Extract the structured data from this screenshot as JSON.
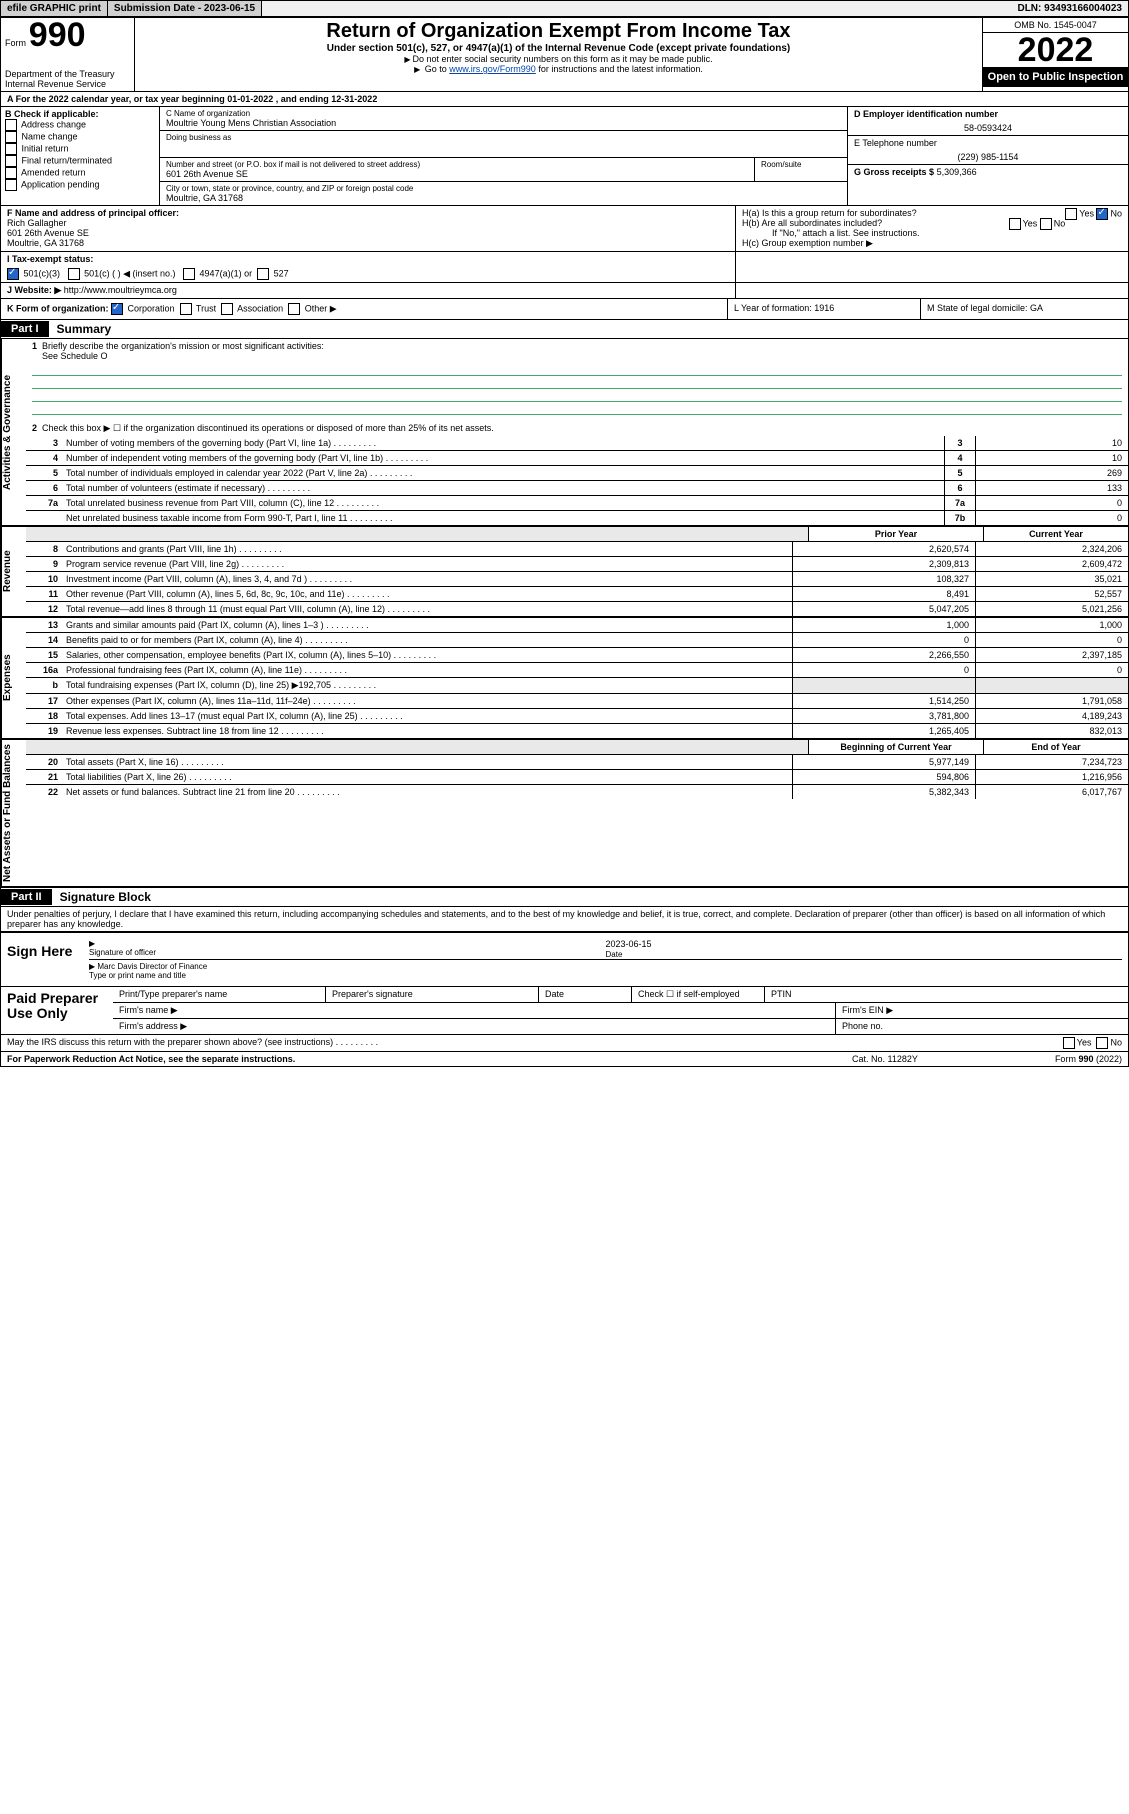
{
  "topbar": {
    "efile": "efile GRAPHIC print",
    "submission": "Submission Date - 2023-06-15",
    "dln": "DLN: 93493166004023"
  },
  "header": {
    "form_prefix": "Form",
    "form_number": "990",
    "dept": "Department of the Treasury",
    "irs": "Internal Revenue Service",
    "title": "Return of Organization Exempt From Income Tax",
    "subtitle": "Under section 501(c), 527, or 4947(a)(1) of the Internal Revenue Code (except private foundations)",
    "instr1": "Do not enter social security numbers on this form as it may be made public.",
    "instr2_pre": "Go to ",
    "instr2_link": "www.irs.gov/Form990",
    "instr2_post": " for instructions and the latest information.",
    "omb": "OMB No. 1545-0047",
    "year": "2022",
    "open": "Open to Public Inspection"
  },
  "rowA": "A For the 2022 calendar year, or tax year beginning 01-01-2022   , and ending 12-31-2022",
  "colB": {
    "label": "B Check if applicable:",
    "items": [
      "Address change",
      "Name change",
      "Initial return",
      "Final return/terminated",
      "Amended return",
      "Application pending"
    ]
  },
  "colC": {
    "name_label": "C Name of organization",
    "name": "Moultrie Young Mens Christian Association",
    "dba_label": "Doing business as",
    "addr_label": "Number and street (or P.O. box if mail is not delivered to street address)",
    "room_label": "Room/suite",
    "addr": "601 26th Avenue SE",
    "city_label": "City or town, state or province, country, and ZIP or foreign postal code",
    "city": "Moultrie, GA  31768"
  },
  "colD": {
    "ein_label": "D Employer identification number",
    "ein": "58-0593424",
    "phone_label": "E Telephone number",
    "phone": "(229) 985-1154",
    "gross_label": "G Gross receipts $",
    "gross": "5,309,366"
  },
  "rowF": {
    "label": "F  Name and address of principal officer:",
    "name": "Rich Gallagher",
    "addr1": "601 26th Avenue SE",
    "addr2": "Moultrie, GA  31768"
  },
  "rowH": {
    "ha": "H(a)  Is this a group return for subordinates?",
    "hb": "H(b)  Are all subordinates included?",
    "hb_note": "If \"No,\" attach a list. See instructions.",
    "hc": "H(c)  Group exemption number ▶",
    "yes": "Yes",
    "no": "No"
  },
  "rowI": {
    "label": "I   Tax-exempt status:",
    "opts": [
      "501(c)(3)",
      "501(c) (   ) ◀ (insert no.)",
      "4947(a)(1) or",
      "527"
    ]
  },
  "rowJ": {
    "label": "J   Website: ▶",
    "url": "http://www.moultrieymca.org"
  },
  "rowK": {
    "label": "K Form of organization:",
    "opts": [
      "Corporation",
      "Trust",
      "Association",
      "Other ▶"
    ],
    "L": "L Year of formation: 1916",
    "M": "M State of legal domicile: GA"
  },
  "parts": {
    "p1": "Part I",
    "p1_title": "Summary",
    "p2": "Part II",
    "p2_title": "Signature Block"
  },
  "summary": {
    "line1": "Briefly describe the organization's mission or most significant activities:",
    "line1_val": "See Schedule O",
    "line2": "Check this box ▶ ☐  if the organization discontinued its operations or disposed of more than 25% of its net assets.",
    "prior_label": "Prior Year",
    "current_label": "Current Year",
    "begin_label": "Beginning of Current Year",
    "end_label": "End of Year",
    "fundraising_expenses": "192,705",
    "rows_top": [
      {
        "n": "3",
        "d": "Number of voting members of the governing body (Part VI, line 1a)",
        "bn": "3",
        "v": "10"
      },
      {
        "n": "4",
        "d": "Number of independent voting members of the governing body (Part VI, line 1b)",
        "bn": "4",
        "v": "10"
      },
      {
        "n": "5",
        "d": "Total number of individuals employed in calendar year 2022 (Part V, line 2a)",
        "bn": "5",
        "v": "269"
      },
      {
        "n": "6",
        "d": "Total number of volunteers (estimate if necessary)",
        "bn": "6",
        "v": "133"
      },
      {
        "n": "7a",
        "d": "Total unrelated business revenue from Part VIII, column (C), line 12",
        "bn": "7a",
        "v": "0"
      },
      {
        "n": "",
        "d": "Net unrelated business taxable income from Form 990-T, Part I, line 11",
        "bn": "7b",
        "v": "0"
      }
    ],
    "rows_rev": [
      {
        "n": "8",
        "d": "Contributions and grants (Part VIII, line 1h)",
        "p": "2,620,574",
        "c": "2,324,206"
      },
      {
        "n": "9",
        "d": "Program service revenue (Part VIII, line 2g)",
        "p": "2,309,813",
        "c": "2,609,472"
      },
      {
        "n": "10",
        "d": "Investment income (Part VIII, column (A), lines 3, 4, and 7d )",
        "p": "108,327",
        "c": "35,021"
      },
      {
        "n": "11",
        "d": "Other revenue (Part VIII, column (A), lines 5, 6d, 8c, 9c, 10c, and 11e)",
        "p": "8,491",
        "c": "52,557"
      },
      {
        "n": "12",
        "d": "Total revenue—add lines 8 through 11 (must equal Part VIII, column (A), line 12)",
        "p": "5,047,205",
        "c": "5,021,256"
      }
    ],
    "rows_exp": [
      {
        "n": "13",
        "d": "Grants and similar amounts paid (Part IX, column (A), lines 1–3 )",
        "p": "1,000",
        "c": "1,000"
      },
      {
        "n": "14",
        "d": "Benefits paid to or for members (Part IX, column (A), line 4)",
        "p": "0",
        "c": "0"
      },
      {
        "n": "15",
        "d": "Salaries, other compensation, employee benefits (Part IX, column (A), lines 5–10)",
        "p": "2,266,550",
        "c": "2,397,185"
      },
      {
        "n": "16a",
        "d": "Professional fundraising fees (Part IX, column (A), line 11e)",
        "p": "0",
        "c": "0"
      },
      {
        "n": "b",
        "d": "Total fundraising expenses (Part IX, column (D), line 25) ▶192,705",
        "p": "",
        "c": "",
        "grey": true
      },
      {
        "n": "17",
        "d": "Other expenses (Part IX, column (A), lines 11a–11d, 11f–24e)",
        "p": "1,514,250",
        "c": "1,791,058"
      },
      {
        "n": "18",
        "d": "Total expenses. Add lines 13–17 (must equal Part IX, column (A), line 25)",
        "p": "3,781,800",
        "c": "4,189,243"
      },
      {
        "n": "19",
        "d": "Revenue less expenses. Subtract line 18 from line 12",
        "p": "1,265,405",
        "c": "832,013"
      }
    ],
    "rows_net": [
      {
        "n": "20",
        "d": "Total assets (Part X, line 16)",
        "p": "5,977,149",
        "c": "7,234,723"
      },
      {
        "n": "21",
        "d": "Total liabilities (Part X, line 26)",
        "p": "594,806",
        "c": "1,216,956"
      },
      {
        "n": "22",
        "d": "Net assets or fund balances. Subtract line 21 from line 20",
        "p": "5,382,343",
        "c": "6,017,767"
      }
    ]
  },
  "vlabels": {
    "ag": "Activities & Governance",
    "rev": "Revenue",
    "exp": "Expenses",
    "net": "Net Assets or Fund Balances"
  },
  "signature": {
    "intro": "Under penalties of perjury, I declare that I have examined this return, including accompanying schedules and statements, and to the best of my knowledge and belief, it is true, correct, and complete. Declaration of preparer (other than officer) is based on all information of which preparer has any knowledge.",
    "sign_here": "Sign Here",
    "sig_officer": "Signature of officer",
    "date": "Date",
    "date_val": "2023-06-15",
    "name_title": "Marc Davis  Director of Finance",
    "name_label": "Type or print name and title",
    "paid": "Paid Preparer Use Only",
    "pt_name": "Print/Type preparer's name",
    "pt_sig": "Preparer's signature",
    "pt_date": "Date",
    "pt_check": "Check ☐ if self-employed",
    "ptin": "PTIN",
    "firm_name": "Firm's name  ▶",
    "firm_ein": "Firm's EIN ▶",
    "firm_addr": "Firm's address ▶",
    "phone": "Phone no.",
    "discuss": "May the IRS discuss this return with the preparer shown above? (see instructions)",
    "yes": "Yes",
    "no": "No"
  },
  "footer": {
    "paperwork": "For Paperwork Reduction Act Notice, see the separate instructions.",
    "cat": "Cat. No. 11282Y",
    "form": "Form 990 (2022)"
  }
}
